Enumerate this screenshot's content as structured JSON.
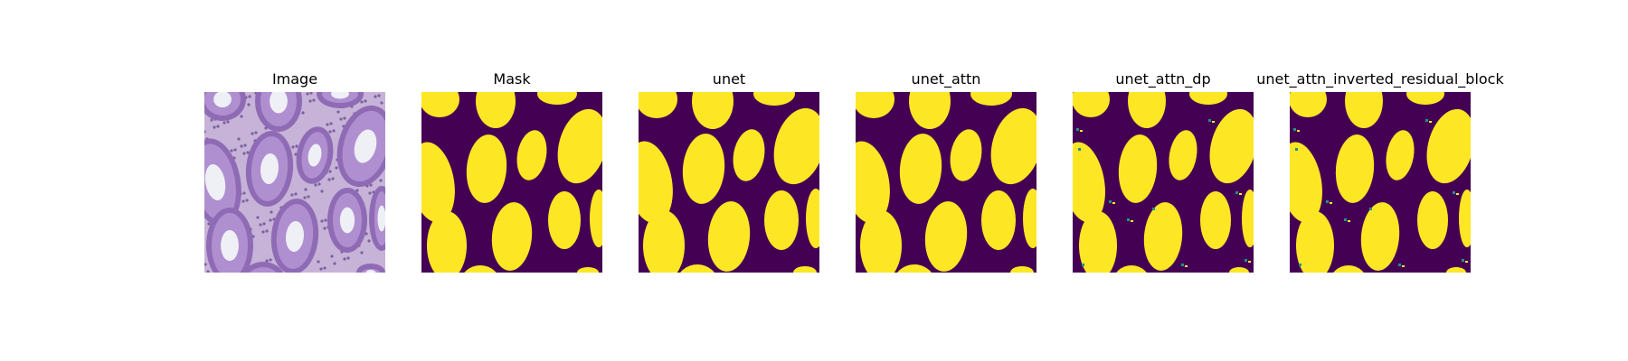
{
  "figure": {
    "panels": [
      {
        "title": "Image",
        "kind": "histology"
      },
      {
        "title": "Mask",
        "kind": "mask",
        "variant": "truth"
      },
      {
        "title": "unet",
        "kind": "mask",
        "variant": "smooth"
      },
      {
        "title": "unet_attn",
        "kind": "mask",
        "variant": "smooth"
      },
      {
        "title": "unet_attn_dp",
        "kind": "mask",
        "variant": "noisy"
      },
      {
        "title": "unet_attn_inverted_residual_block",
        "kind": "mask",
        "variant": "noisy"
      }
    ],
    "colors": {
      "background_mask": "#440154",
      "foreground_mask": "#fde725",
      "edge_mask": "#21918c",
      "histology_base": "#c7b3d8",
      "histology_nuclei": "#4b2a7a",
      "histology_lumen": "#eef0f6"
    }
  }
}
